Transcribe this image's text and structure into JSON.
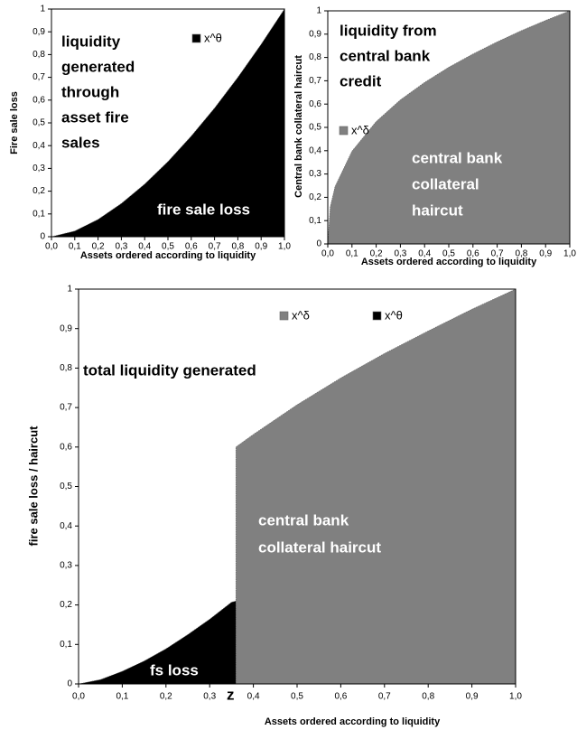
{
  "chart_data": [
    {
      "type": "area",
      "x_label": "Assets ordered according to liquidity",
      "y_label": "Fire sale loss",
      "annotations": [
        "liquidity",
        "generated",
        "through",
        "asset fire",
        "sales",
        "fire sale loss"
      ],
      "series": [
        {
          "name": "x^θ",
          "color": "#000000",
          "x": [
            0,
            0.1,
            0.2,
            0.3,
            0.4,
            0.5,
            0.6,
            0.7,
            0.8,
            0.9,
            1
          ],
          "values": [
            0,
            0.025,
            0.076,
            0.146,
            0.231,
            0.33,
            0.442,
            0.565,
            0.7,
            0.845,
            1
          ]
        }
      ],
      "xlim": [
        0,
        1
      ],
      "xticks": [
        {
          "value": 0,
          "label": "0,0"
        },
        {
          "value": 0.1,
          "label": "0,1"
        },
        {
          "value": 0.2,
          "label": "0,2"
        },
        {
          "value": 0.3,
          "label": "0,3"
        },
        {
          "value": 0.4,
          "label": "0,4"
        },
        {
          "value": 0.5,
          "label": "0,5"
        },
        {
          "value": 0.6,
          "label": "0,6"
        },
        {
          "value": 0.7,
          "label": "0,7"
        },
        {
          "value": 0.8,
          "label": "0,8"
        },
        {
          "value": 0.9,
          "label": "0,9"
        },
        {
          "value": 1,
          "label": "1,0"
        }
      ],
      "ylim": [
        0,
        1
      ],
      "yticks": [
        0,
        {
          "value": 0.1,
          "label": "0,1"
        },
        {
          "value": 0.2,
          "label": "0,2"
        },
        {
          "value": 0.3,
          "label": "0,3"
        },
        {
          "value": 0.4,
          "label": "0,4"
        },
        {
          "value": 0.5,
          "label": "0,5"
        },
        {
          "value": 0.6,
          "label": "0,6"
        },
        {
          "value": 0.7,
          "label": "0,7"
        },
        {
          "value": 0.8,
          "label": "0,8"
        },
        {
          "value": 0.9,
          "label": "0,9"
        },
        1
      ]
    },
    {
      "type": "area",
      "x_label": "Assets ordered according to liquidity",
      "y_label": "Central bank collateral haircut",
      "annotations": [
        "liquidity  from",
        "central bank",
        "credit",
        "central bank",
        "collateral",
        "haircut"
      ],
      "series": [
        {
          "name": "x^δ",
          "color": "#808080",
          "x": [
            0,
            0.01,
            0.03,
            0.1,
            0.2,
            0.3,
            0.4,
            0.5,
            0.6,
            0.7,
            0.8,
            0.9,
            1
          ],
          "values": [
            0,
            0.158,
            0.246,
            0.398,
            0.525,
            0.618,
            0.693,
            0.758,
            0.815,
            0.867,
            0.915,
            0.959,
            1
          ]
        }
      ],
      "xlim": [
        0,
        1
      ],
      "xticks": [
        {
          "value": 0,
          "label": "0,0"
        },
        {
          "value": 0.1,
          "label": "0,1"
        },
        {
          "value": 0.2,
          "label": "0,2"
        },
        {
          "value": 0.3,
          "label": "0,3"
        },
        {
          "value": 0.4,
          "label": "0,4"
        },
        {
          "value": 0.5,
          "label": "0,5"
        },
        {
          "value": 0.6,
          "label": "0,6"
        },
        {
          "value": 0.7,
          "label": "0,7"
        },
        {
          "value": 0.8,
          "label": "0,8"
        },
        {
          "value": 0.9,
          "label": "0,9"
        },
        {
          "value": 1,
          "label": "1,0"
        }
      ],
      "ylim": [
        0,
        1
      ],
      "yticks": [
        0,
        {
          "value": 0.1,
          "label": "0,1"
        },
        {
          "value": 0.2,
          "label": "0,2"
        },
        {
          "value": 0.3,
          "label": "0,3"
        },
        {
          "value": 0.4,
          "label": "0,4"
        },
        {
          "value": 0.5,
          "label": "0,5"
        },
        {
          "value": 0.6,
          "label": "0,6"
        },
        {
          "value": 0.7,
          "label": "0,7"
        },
        {
          "value": 0.8,
          "label": "0,8"
        },
        {
          "value": 0.9,
          "label": "0,9"
        },
        1
      ]
    },
    {
      "type": "area",
      "x_label": "Assets ordered according to liquidity",
      "y_label": "fire sale loss / haircut",
      "annotations": [
        "total liquidity generated",
        "central bank",
        "collateral haircut",
        "fs loss",
        "z"
      ],
      "series": [
        {
          "name": "x^δ",
          "color": "#808080",
          "x": [
            0.36,
            0.36,
            0.4,
            0.5,
            0.6,
            0.7,
            0.8,
            0.9,
            1
          ],
          "values": [
            0,
            0.6,
            0.632,
            0.707,
            0.775,
            0.837,
            0.894,
            0.949,
            1
          ]
        },
        {
          "name": "x^θ",
          "color": "#000000",
          "x": [
            0,
            0.05,
            0.1,
            0.15,
            0.2,
            0.25,
            0.3,
            0.35,
            0.36
          ],
          "values": [
            0,
            0.011,
            0.032,
            0.058,
            0.089,
            0.125,
            0.164,
            0.207,
            0.21
          ]
        }
      ],
      "xlim": [
        0,
        1
      ],
      "xticks": [
        {
          "value": 0,
          "label": "0,0"
        },
        {
          "value": 0.1,
          "label": "0,1"
        },
        {
          "value": 0.2,
          "label": "0,2"
        },
        {
          "value": 0.3,
          "label": "0,3"
        },
        {
          "value": 0.4,
          "label": "0,4"
        },
        {
          "value": 0.5,
          "label": "0,5"
        },
        {
          "value": 0.6,
          "label": "0,6"
        },
        {
          "value": 0.7,
          "label": "0,7"
        },
        {
          "value": 0.8,
          "label": "0,8"
        },
        {
          "value": 0.9,
          "label": "0,9"
        },
        {
          "value": 1,
          "label": "1,0"
        }
      ],
      "ylim": [
        0,
        1
      ],
      "yticks": [
        0,
        {
          "value": 0.1,
          "label": "0,1"
        },
        {
          "value": 0.2,
          "label": "0,2"
        },
        {
          "value": 0.3,
          "label": "0,3"
        },
        {
          "value": 0.4,
          "label": "0,4"
        },
        {
          "value": 0.5,
          "label": "0,5"
        },
        {
          "value": 0.6,
          "label": "0,6"
        },
        {
          "value": 0.7,
          "label": "0,7"
        },
        {
          "value": 0.8,
          "label": "0,8"
        },
        {
          "value": 0.9,
          "label": "0,9"
        },
        1
      ]
    }
  ]
}
